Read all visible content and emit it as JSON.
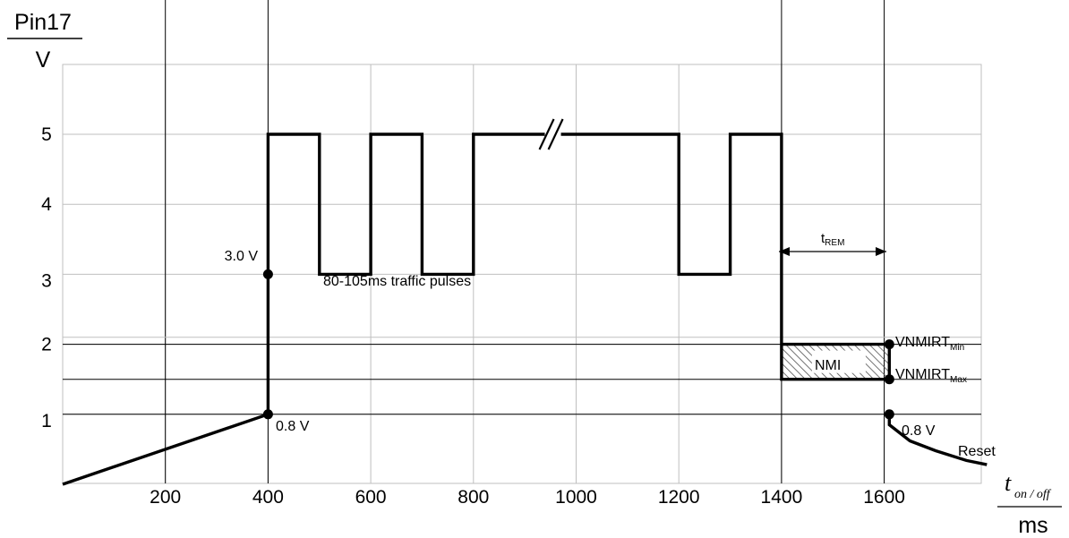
{
  "chart_data": {
    "type": "line",
    "title": "",
    "ylabel": {
      "top": "Pin17",
      "bottom": "V"
    },
    "xlabel": {
      "italic_t": "t",
      "subscript": "on / off",
      "unit": "ms"
    },
    "xlim": [
      0,
      1800
    ],
    "ylim": [
      0,
      6
    ],
    "x_ticks": [
      200,
      400,
      600,
      800,
      1000,
      1200,
      1400,
      1600
    ],
    "x_tick_labels": [
      "200",
      "400",
      "600",
      "800",
      "1000",
      "1200",
      "1400",
      "1600"
    ],
    "y_ticks": [
      1,
      2,
      3,
      4,
      5
    ],
    "y_tick_labels": [
      "1",
      "2",
      "3",
      "4",
      "5"
    ],
    "major_v_grid": [
      200,
      400,
      1400,
      1600
    ],
    "h_grid": [
      1.0,
      1.5,
      2.0,
      2.1
    ],
    "grid": true,
    "series": [
      {
        "points": [
          [
            0,
            0
          ],
          [
            400,
            1.0
          ],
          [
            400,
            5.0
          ],
          [
            500,
            5.0
          ],
          [
            500,
            3.0
          ],
          [
            600,
            3.0
          ],
          [
            600,
            5.0
          ],
          [
            700,
            5.0
          ],
          [
            700,
            3.0
          ],
          [
            800,
            3.0
          ],
          [
            800,
            5.0
          ],
          [
            1200,
            5.0
          ],
          [
            1200,
            3.0
          ],
          [
            1300,
            3.0
          ],
          [
            1300,
            5.0
          ],
          [
            1400,
            5.0
          ],
          [
            1400,
            1.5
          ],
          [
            1610,
            1.5
          ],
          [
            1610,
            2.0
          ],
          [
            1400,
            2.0
          ]
        ]
      },
      {
        "name": "Reset",
        "points": [
          [
            1610,
            1.0
          ],
          [
            1610,
            0.85
          ],
          [
            1650,
            0.62
          ],
          [
            1700,
            0.48
          ],
          [
            1760,
            0.34
          ],
          [
            1800,
            0.28
          ]
        ]
      }
    ],
    "break_mark_x": 960,
    "markers": [
      [
        400,
        1.0
      ],
      [
        400,
        3.0
      ],
      [
        1610,
        2.0
      ],
      [
        1610,
        1.5
      ],
      [
        1610,
        1.0
      ]
    ],
    "annotations": {
      "v30": "3.0 V",
      "v08_left": "0.8 V",
      "pulses": "80-105ms traffic pulses",
      "trem": "t",
      "trem_sub": "REM",
      "nmi": "NMI",
      "vmin": "VNMIRT",
      "vmin_sub": "Min",
      "vmax": "VNMIRT",
      "vmax_sub": "Max",
      "v08_right": "0.8 V",
      "reset": "Reset"
    },
    "colors": {
      "line": "#000000",
      "grid": "#bfbfbf",
      "hatch": "#555555"
    }
  }
}
